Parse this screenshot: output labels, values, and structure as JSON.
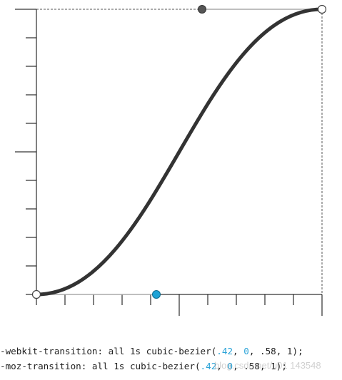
{
  "code": {
    "line1": {
      "prefix": "-webkit-transition: all 1s cubic-bezier(",
      "p1x": ".42",
      "sep1": ", ",
      "p1y": "0",
      "sep2": ", ",
      "p2x": ".58",
      "sep3": ", ",
      "p2y": "1",
      "suffix": ");"
    },
    "line2": {
      "prefix": "-moz-transition: all 1s cubic-bezier(",
      "p1x": ".42",
      "sep1": ", ",
      "p1y": "0",
      "sep2": ", ",
      "p2x": ".58",
      "sep3": ", ",
      "p2y": "1",
      "suffix": ");"
    }
  },
  "bezier": {
    "p1": [
      0.42,
      0
    ],
    "p2": [
      0.58,
      1
    ]
  },
  "watermark": "blog.csdn.net/u01 143548",
  "colors": {
    "curve": "#333333",
    "handle_p1": "#1fa3d6",
    "handle_p2": "#555555",
    "axis": "#000000",
    "number_highlight": "#2aa3d8"
  }
}
